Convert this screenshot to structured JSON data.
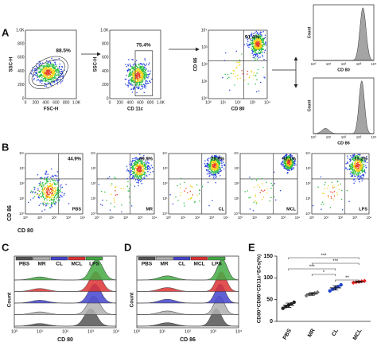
{
  "panel_letters": [
    "A",
    "B",
    "C",
    "D",
    "E"
  ],
  "lin_ticks": [
    "0",
    "200",
    "400",
    "600",
    "800",
    "1.0K"
  ],
  "log_ticks": [
    "10⁰",
    "10¹",
    "10²",
    "10³",
    "10⁴"
  ],
  "a": {
    "gate1": {
      "percent": "88.5%",
      "ylabel": "SSC-H",
      "xlabel": "FSC-H"
    },
    "gate2": {
      "percent": "75.4%",
      "ylabel": "SSC-H",
      "xlabel": "CD 11c"
    },
    "gate3": {
      "percent": "91.4%",
      "ylabel": "CD 86",
      "xlabel": "CD 80"
    },
    "hist1": {
      "ylabel": "Count",
      "xlabel": "CD 80"
    },
    "hist2": {
      "ylabel": "Count",
      "xlabel": "CD 86"
    }
  },
  "b": {
    "ylabel": "CD 86",
    "xlabel": "CD 80",
    "plots": [
      {
        "name": "PBS",
        "percent": "44.9%"
      },
      {
        "name": "MR",
        "percent": "69.9%"
      },
      {
        "name": "CL",
        "percent": "78.9%"
      },
      {
        "name": "MCL",
        "percent": "92.1%"
      },
      {
        "name": "LPS",
        "percent": "73.2%"
      }
    ]
  },
  "c": {
    "xlabel": "CD 80",
    "ylabel": "Count"
  },
  "d": {
    "xlabel": "CD 86",
    "ylabel": "Count"
  },
  "legend": [
    "PBS",
    "MR",
    "CL",
    "MCL",
    "LPS"
  ],
  "legend_colors": [
    "#555555",
    "#b0b0b0",
    "#4444cc",
    "#dd3333",
    "#44aa44"
  ],
  "chart_data": {
    "type": "dot",
    "ylabel": "CD80⁺CD86⁺CD11c⁺DCs(%)",
    "categories": [
      "PBS",
      "MR",
      "CL",
      "MCL"
    ],
    "values": [
      37,
      63,
      77,
      91
    ],
    "errors": [
      5,
      3,
      5,
      1.5
    ],
    "points": [
      [
        30,
        34,
        37,
        40,
        44
      ],
      [
        59,
        62,
        63,
        65,
        67
      ],
      [
        70,
        74,
        77,
        80,
        84
      ],
      [
        89,
        90,
        91,
        92,
        93
      ]
    ],
    "colors": [
      "#222222",
      "#777777",
      "#2244cc",
      "#ee2222"
    ],
    "ylim": [
      0,
      150
    ],
    "yticks": [
      0,
      50,
      100,
      150
    ],
    "annotations": [
      "***",
      "***",
      "***",
      "*",
      "**"
    ]
  }
}
